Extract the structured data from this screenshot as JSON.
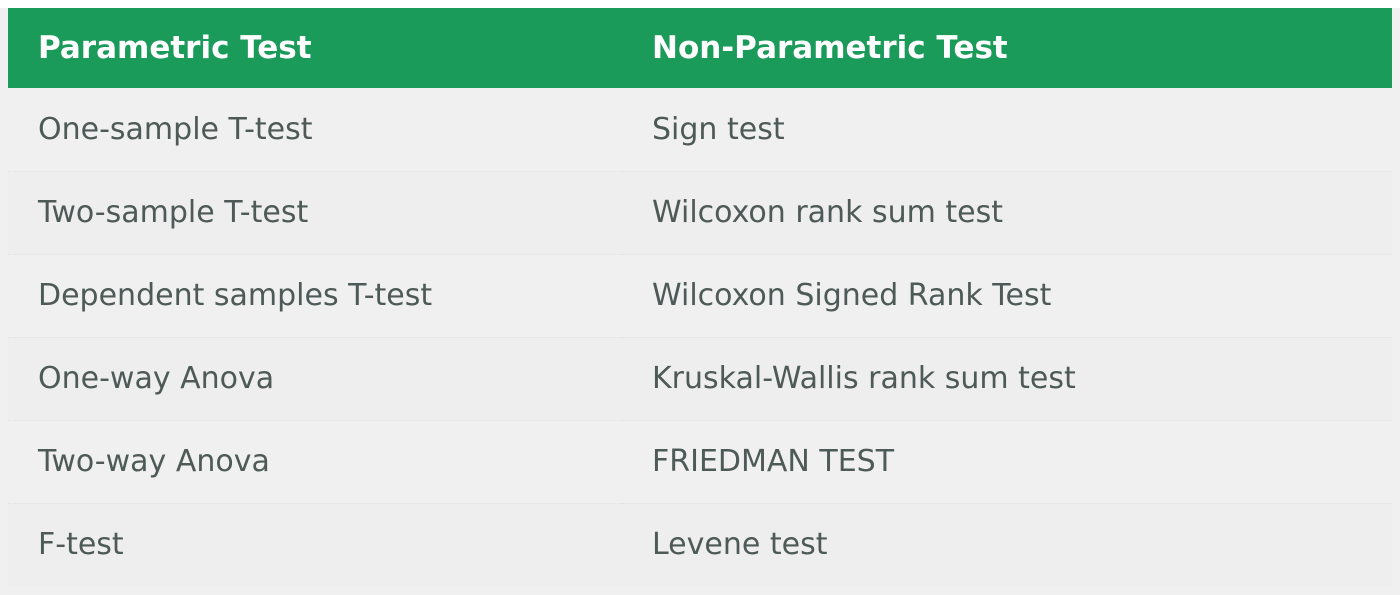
{
  "table": {
    "headers": [
      "Parametric Test",
      "Non-Parametric Test"
    ],
    "rows": [
      [
        "One-sample T-test",
        "Sign test"
      ],
      [
        "Two-sample T-test",
        "Wilcoxon rank sum test"
      ],
      [
        "Dependent samples T-test",
        "Wilcoxon Signed Rank Test"
      ],
      [
        "One-way Anova",
        "Kruskal-Wallis rank sum test"
      ],
      [
        "Two-way Anova",
        "FRIEDMAN TEST"
      ],
      [
        "F-test",
        "Levene test"
      ]
    ]
  },
  "colors": {
    "header_background": "#1a9b5a",
    "header_text": "#ffffff",
    "body_text": "#4e5a57",
    "row_background": "#f0f0f0"
  }
}
